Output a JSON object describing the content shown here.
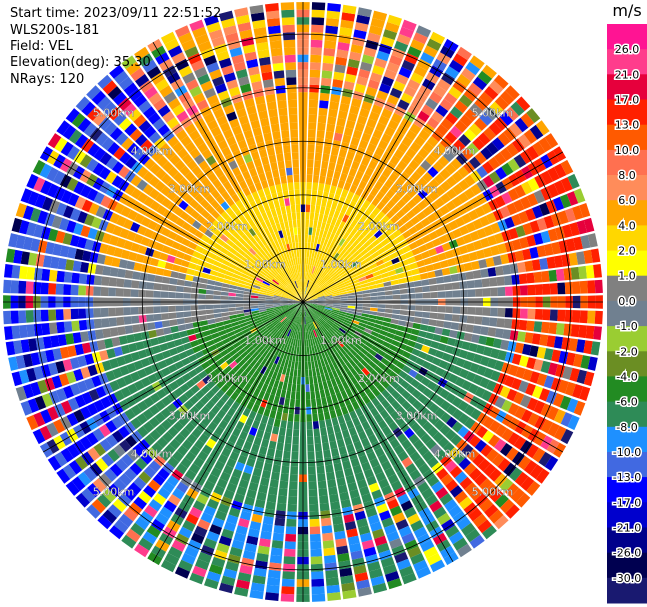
{
  "info": {
    "start_time": "Start time: 2023/09/11 22:51:52",
    "site": "WLS200s-181",
    "field": "Field: VEL",
    "elevation": "Elevation(deg): 35.30",
    "nrays": "NRays: 120"
  },
  "chart_data": {
    "type": "ppi",
    "title": "",
    "unit": "m/s",
    "rings_km": [
      1.0,
      2.0,
      3.0,
      4.0,
      5.0
    ],
    "ring_labels": [
      "1.00km",
      "2.00km",
      "3.00km",
      "4.00km",
      "5.00km"
    ],
    "max_range_km": 5.6,
    "n_rays": 120,
    "n_gates": 40,
    "colorbar": {
      "ticks": [
        26.0,
        21.0,
        17.0,
        13.0,
        10.0,
        8.0,
        6.0,
        4.0,
        2.0,
        1.0,
        0.0,
        -1.0,
        -2.0,
        -4.0,
        -6.0,
        -8.0,
        -10.0,
        -13.0,
        -17.0,
        -21.0,
        -26.0,
        -30.0
      ],
      "tick_labels": [
        "26.0",
        "21.0",
        "17.0",
        "13.0",
        "10.0",
        "8.0",
        "6.0",
        "4.0",
        "2.0",
        "1.0",
        "0.0",
        "-1.0",
        "-2.0",
        "-4.0",
        "-6.0",
        "-8.0",
        "-10.0",
        "-13.0",
        "-17.0",
        "-21.0",
        "-26.0",
        "-30.0"
      ],
      "colors": [
        "#ff1493",
        "#ff3c8c",
        "#e6003c",
        "#ff2000",
        "#ff5a00",
        "#ff7050",
        "#ff8c5a",
        "#ffa500",
        "#ffd700",
        "#ffff00",
        "#808080",
        "#708090",
        "#9acd32",
        "#6b8e23",
        "#228b22",
        "#2e8b57",
        "#1e90ff",
        "#4169e1",
        "#0000ff",
        "#0000cd",
        "#00008b",
        "#000050",
        "#191970"
      ]
    },
    "pattern": {
      "upper_half_velocity": 2.0,
      "upper_far_ring_velocity": 4.0,
      "lower_half_velocity": -4.0,
      "lower_far_ring_velocity": -6.0,
      "east_far_velocity": 13.0,
      "west_far_velocity": -13.0,
      "zero_line_velocity": 0.0
    }
  }
}
